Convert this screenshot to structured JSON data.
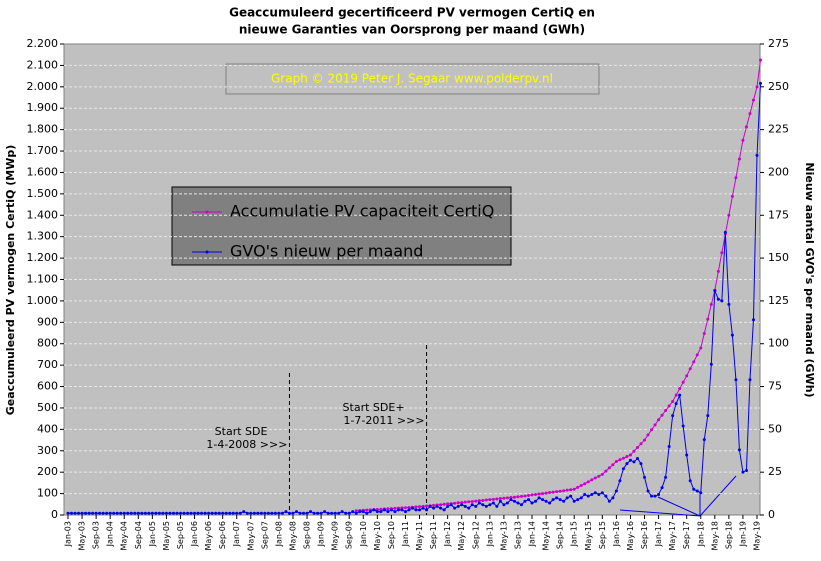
{
  "chart_data": {
    "type": "line",
    "title": "Geaccumuleerd gecertificeerd PV vermogen CertiQ en",
    "subtitle": "nieuwe Garanties van Oorsprong per maand (GWh)",
    "y_label": "Geaccumuleerd PV vermogen CertiQ (MWp)",
    "y2_label": "Nieuw aantal GVO's per maand (GWh)",
    "credit": "Graph  © 2019  Peter J. Segaar  www.polderpv.nl",
    "annotations": [
      {
        "lines": [
          "Start SDE",
          "1-4-2008  >>>"
        ]
      },
      {
        "lines": [
          "Start SDE+",
          "1-7-2011  >>>"
        ]
      }
    ],
    "categories": [
      "Jan-03",
      null,
      null,
      null,
      "May-03",
      null,
      null,
      null,
      "Sep-03",
      null,
      null,
      null,
      "Jan-04",
      null,
      null,
      null,
      "May-04",
      null,
      null,
      null,
      "Sep-04",
      null,
      null,
      null,
      "Jan-05",
      null,
      null,
      null,
      "May-05",
      null,
      null,
      null,
      "Sep-05",
      null,
      null,
      null,
      "Jan-06",
      null,
      null,
      null,
      "May-06",
      null,
      null,
      null,
      "Sep-06",
      null,
      null,
      null,
      "Jan-07",
      null,
      null,
      null,
      "May-07",
      null,
      null,
      null,
      "Sep-07",
      null,
      null,
      null,
      "Jan-08",
      null,
      null,
      null,
      "May-08",
      null,
      null,
      null,
      "Sep-08",
      null,
      null,
      null,
      "Jan-09",
      null,
      null,
      null,
      "May-09",
      null,
      null,
      null,
      "Sep-09",
      null,
      null,
      null,
      "Jan-10",
      null,
      null,
      null,
      "May-10",
      null,
      null,
      null,
      "Sep-10",
      null,
      null,
      null,
      "Jan-11",
      null,
      null,
      null,
      "May-11",
      null,
      null,
      null,
      "Sep-11",
      null,
      null,
      null,
      "Jan-12",
      null,
      null,
      null,
      "May-12",
      null,
      null,
      null,
      "Sep-12",
      null,
      null,
      null,
      "Jan-13",
      null,
      null,
      null,
      "May-13",
      null,
      null,
      null,
      "Sep-13",
      null,
      null,
      null,
      "Jan-14",
      null,
      null,
      null,
      "May-14",
      null,
      null,
      null,
      "Sep-14",
      null,
      null,
      null,
      "Jan-15",
      null,
      null,
      null,
      "May-15",
      null,
      null,
      null,
      "Sep-15",
      null,
      null,
      null,
      "Jan-16",
      null,
      null,
      null,
      "May-16",
      null,
      null,
      null,
      "Sep-16",
      null,
      null,
      null,
      "Jan-17",
      null,
      null,
      null,
      "May-17",
      null,
      null,
      null,
      "Sep-17",
      null,
      null,
      null,
      "Jan-18",
      null,
      null,
      null,
      "May-18",
      null,
      null,
      null,
      "Sep-18",
      null,
      null,
      null,
      "Jan-19",
      null,
      null,
      null,
      "May-19",
      null
    ],
    "series": [
      {
        "name": "Accumulatie PV capaciteit CertiQ",
        "color": "#cc00cc",
        "axis": "y",
        "values": [
          null,
          null,
          null,
          null,
          null,
          null,
          null,
          null,
          null,
          null,
          null,
          null,
          null,
          null,
          null,
          null,
          null,
          null,
          null,
          null,
          null,
          null,
          null,
          null,
          null,
          null,
          null,
          null,
          null,
          null,
          null,
          null,
          null,
          null,
          null,
          null,
          null,
          null,
          null,
          null,
          null,
          null,
          null,
          null,
          null,
          null,
          null,
          null,
          null,
          null,
          null,
          null,
          null,
          null,
          null,
          null,
          null,
          null,
          null,
          null,
          null,
          null,
          null,
          null,
          null,
          null,
          null,
          null,
          null,
          null,
          null,
          null,
          null,
          null,
          null,
          null,
          null,
          null,
          null,
          null,
          null,
          null,
          20,
          21,
          22,
          23,
          24,
          25,
          26,
          27,
          28,
          29,
          30,
          31,
          32,
          33,
          34,
          35,
          36,
          38,
          39,
          40,
          42,
          43,
          45,
          47,
          48,
          50,
          52,
          53,
          55,
          57,
          58,
          60,
          62,
          63,
          65,
          67,
          68,
          70,
          72,
          73,
          75,
          77,
          78,
          80,
          82,
          83,
          85,
          87,
          89,
          91,
          94,
          96,
          98,
          100,
          102,
          105,
          107,
          109,
          111,
          113,
          116,
          118,
          120,
          129,
          138,
          146,
          155,
          164,
          173,
          181,
          190,
          205,
          220,
          235,
          250,
          258,
          265,
          273,
          280,
          298,
          315,
          333,
          350,
          374,
          398,
          421,
          445,
          466,
          488,
          509,
          530,
          560,
          590,
          620,
          650,
          683,
          715,
          748,
          780,
          848,
          915,
          983,
          1050,
          1138,
          1225,
          1313,
          1400,
          1488,
          1575,
          1663,
          1750,
          1813,
          1875,
          1938,
          2000,
          2125
        ]
      },
      {
        "name": "GVO's nieuw per maand",
        "color": "#0000ee",
        "axis": "y2",
        "values": [
          1,
          1,
          1,
          1,
          1,
          1,
          1,
          1,
          1,
          1,
          1,
          1,
          1,
          1,
          1,
          1,
          1,
          1,
          1,
          1,
          1,
          1,
          1,
          1,
          1,
          1,
          1,
          1,
          1,
          1,
          1,
          1,
          1,
          1,
          1,
          1,
          1,
          1,
          1,
          1,
          1,
          1,
          1,
          1,
          1,
          1,
          1,
          1,
          1,
          1,
          2,
          1,
          1,
          1,
          1,
          1,
          1,
          1,
          1,
          1,
          1,
          1,
          2,
          1,
          1,
          2,
          1,
          1,
          1,
          2,
          1,
          1,
          1,
          2,
          1,
          1,
          1,
          1,
          2,
          1,
          1,
          2,
          1,
          2,
          2,
          1,
          2,
          3,
          2,
          2,
          3,
          2,
          3,
          2,
          3,
          3,
          2,
          3,
          4,
          3,
          3,
          4,
          3,
          5,
          4,
          5,
          4,
          3,
          5,
          6,
          4,
          5,
          6,
          5,
          4,
          6,
          5,
          7,
          6,
          5,
          6,
          7,
          5,
          8,
          6,
          7,
          9,
          8,
          7,
          6,
          8,
          9,
          7,
          8,
          10,
          9,
          8,
          7,
          9,
          10,
          9,
          8,
          10,
          11,
          8,
          9,
          10,
          12,
          11,
          12,
          13,
          12,
          13,
          11,
          8,
          10,
          14,
          20,
          27,
          30,
          32,
          31,
          33,
          30,
          22,
          14,
          11,
          11,
          12,
          16,
          22,
          40,
          58,
          65,
          70,
          52,
          35,
          20,
          15,
          14,
          13,
          44,
          58,
          88,
          131,
          126,
          125,
          165,
          123,
          105,
          79,
          38,
          25,
          26,
          79,
          114,
          210,
          252
        ]
      }
    ],
    "ylim": [
      0,
      2200
    ],
    "yticks": [
      0,
      100,
      200,
      300,
      400,
      500,
      600,
      700,
      800,
      900,
      {
        "value": 1000,
        "label": "1.000"
      },
      {
        "value": 1100,
        "label": "1.100"
      },
      {
        "value": 1200,
        "label": "1.200"
      },
      {
        "value": 1300,
        "label": "1.300"
      },
      {
        "value": 1400,
        "label": "1.400"
      },
      {
        "value": 1500,
        "label": "1.500"
      },
      {
        "value": 1600,
        "label": "1.600"
      },
      {
        "value": 1700,
        "label": "1.700"
      },
      {
        "value": 1800,
        "label": "1.800"
      },
      {
        "value": 1900,
        "label": "1.900"
      },
      {
        "value": 2000,
        "label": "2.000"
      },
      {
        "value": 2100,
        "label": "2.100"
      },
      {
        "value": 2200,
        "label": "2.200"
      }
    ],
    "y2lim": [
      0,
      275
    ],
    "y2ticks": [
      0,
      25,
      50,
      75,
      100,
      125,
      150,
      175,
      200,
      225,
      250,
      275
    ],
    "grid": true
  }
}
